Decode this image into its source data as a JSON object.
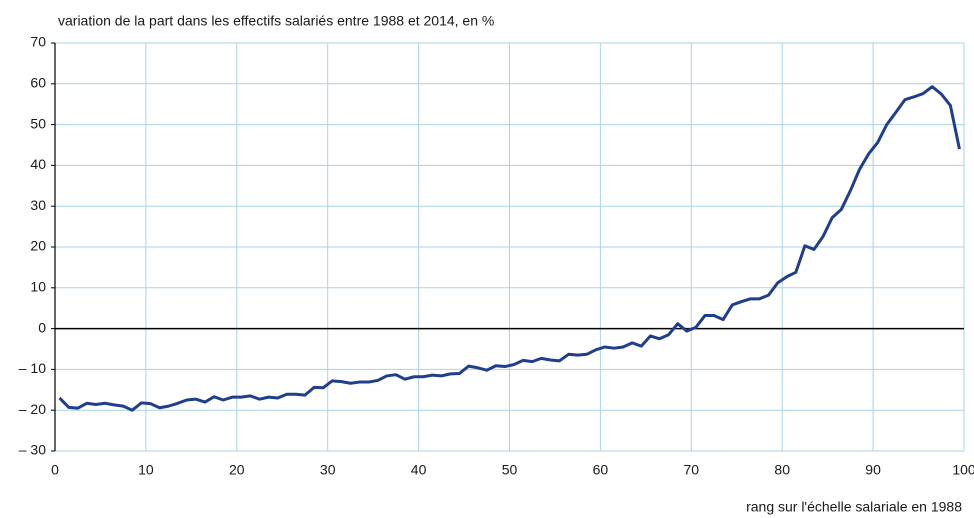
{
  "chart_data": {
    "type": "line",
    "title": "variation de la part dans les effectifs salariés entre 1988 et 2014, en %",
    "x_label": "rang sur l'échelle salariale en 1988",
    "color": "#1f3e8c",
    "grid": true,
    "x": [
      0.5,
      1.5,
      2.5,
      3.5,
      4.5,
      5.5,
      6.5,
      7.5,
      8.5,
      9.5,
      10.5,
      11.5,
      12.5,
      13.5,
      14.5,
      15.5,
      16.5,
      17.5,
      18.5,
      19.5,
      20.5,
      21.5,
      22.5,
      23.5,
      24.5,
      25.5,
      26.5,
      27.5,
      28.5,
      29.5,
      30.5,
      31.5,
      32.5,
      33.5,
      34.5,
      35.5,
      36.5,
      37.5,
      38.5,
      39.5,
      40.5,
      41.5,
      42.5,
      43.5,
      44.5,
      45.5,
      46.5,
      47.5,
      48.5,
      49.5,
      50.5,
      51.5,
      52.5,
      53.5,
      54.5,
      55.5,
      56.5,
      57.5,
      58.5,
      59.5,
      60.5,
      61.5,
      62.5,
      63.5,
      64.5,
      65.5,
      66.5,
      67.5,
      68.5,
      69.5,
      70.5,
      71.5,
      72.5,
      73.5,
      74.5,
      75.5,
      76.5,
      77.5,
      78.5,
      79.5,
      80.5,
      81.5,
      82.5,
      83.5,
      84.5,
      85.5,
      86.5,
      87.5,
      88.5,
      89.5,
      90.5,
      91.5,
      92.5,
      93.5,
      94.5,
      95.5,
      96.5,
      97.5,
      98.5,
      99.5
    ],
    "values": [
      -17,
      -19.3,
      -19.5,
      -18.3,
      -18.6,
      -18.3,
      -18.7,
      -19,
      -20,
      -18.2,
      -18.4,
      -19.4,
      -19,
      -18.3,
      -17.5,
      -17.3,
      -18,
      -16.7,
      -17.5,
      -16.8,
      -16.8,
      -16.5,
      -17.3,
      -16.8,
      -17,
      -16.1,
      -16.1,
      -16.3,
      -14.4,
      -14.5,
      -12.8,
      -13,
      -13.4,
      -13.1,
      -13.1,
      -12.7,
      -11.6,
      -11.3,
      -12.4,
      -11.8,
      -11.8,
      -11.4,
      -11.6,
      -11.1,
      -11,
      -9.2,
      -9.6,
      -10.2,
      -9.1,
      -9.3,
      -8.8,
      -7.8,
      -8.1,
      -7.3,
      -7.7,
      -7.9,
      -6.3,
      -6.5,
      -6.3,
      -5.2,
      -4.5,
      -4.8,
      -4.5,
      -3.5,
      -4.3,
      -1.8,
      -2.5,
      -1.5,
      1.2,
      -0.6,
      0.3,
      3.2,
      3.2,
      2.2,
      5.8,
      6.6,
      7.3,
      7.3,
      8.2,
      11.2,
      12.7,
      13.8,
      20.3,
      19.4,
      22.6,
      27.2,
      29.2,
      33.8,
      39,
      42.8,
      45.6,
      50,
      53,
      56.1,
      56.8,
      57.6,
      59.3,
      57.5,
      54.7,
      44
    ],
    "xlim": [
      0,
      100
    ],
    "xticks": [
      0,
      10,
      20,
      30,
      40,
      50,
      60,
      70,
      80,
      90,
      100
    ],
    "ylim": [
      -30,
      70
    ],
    "yticks": [
      {
        "value": -30,
        "label": "– 30"
      },
      {
        "value": -20,
        "label": "– 20"
      },
      {
        "value": -10,
        "label": "– 10"
      },
      0,
      10,
      20,
      30,
      40,
      50,
      60,
      70
    ]
  }
}
